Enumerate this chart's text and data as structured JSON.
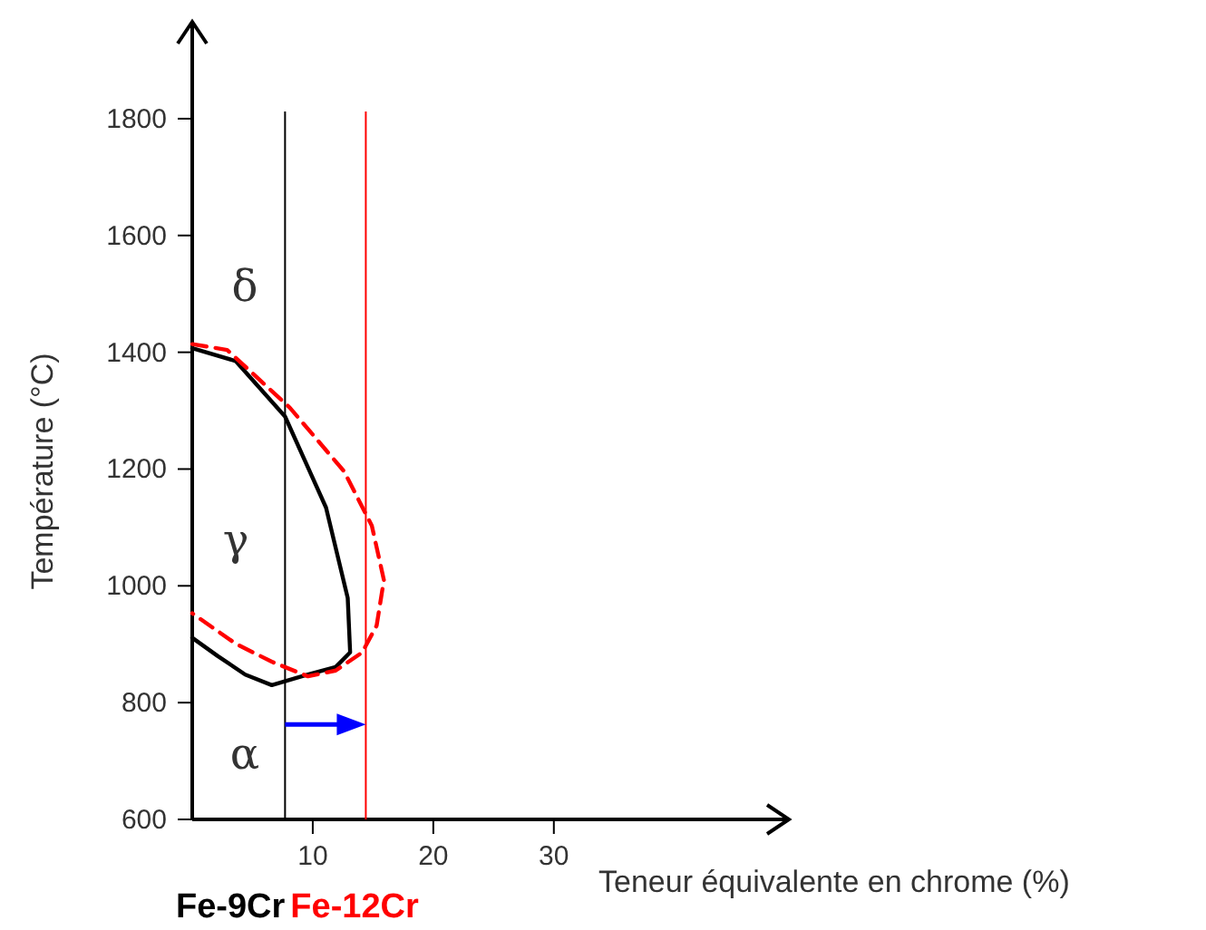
{
  "chart_data": {
    "type": "line",
    "xlabel": "Teneur équivalente en chrome (%)",
    "ylabel": "Température (°C)",
    "xlim": [
      0,
      49.5
    ],
    "ylim": [
      600,
      1966
    ],
    "xticks": [
      10,
      20,
      30
    ],
    "yticks": [
      600,
      800,
      1000,
      1200,
      1400,
      1600,
      1800
    ],
    "grid": false,
    "marker": "none",
    "series": [
      {
        "color": "#000000",
        "line_style": "solid",
        "x": [
          0,
          3.6,
          7.7,
          11.1,
          12.9,
          13.1,
          11.9,
          9.6,
          6.6,
          4.4,
          2.1,
          0
        ],
        "values": [
          1407,
          1385,
          1290,
          1134,
          979,
          886,
          861,
          848,
          830,
          848,
          880,
          911
        ]
      },
      {
        "color": "#ff0000",
        "line_style": "dashed",
        "x": [
          0,
          2.9,
          8.1,
          12.6,
          14.9,
          15.9,
          15.3,
          14.1,
          11.9,
          9.6,
          6.6,
          3.6,
          0
        ],
        "values": [
          1414,
          1404,
          1305,
          1196,
          1103,
          1010,
          932,
          886,
          855,
          845,
          870,
          901,
          953
        ]
      }
    ],
    "ref_lines": [
      {
        "axis": "x",
        "value": 7.7,
        "label": "Fe-9Cr",
        "color": "#000000"
      },
      {
        "axis": "x",
        "value": 14.4,
        "label": "Fe-12Cr",
        "color": "#ff0000"
      }
    ],
    "annotations": [
      "δ",
      "γ",
      "α"
    ]
  }
}
